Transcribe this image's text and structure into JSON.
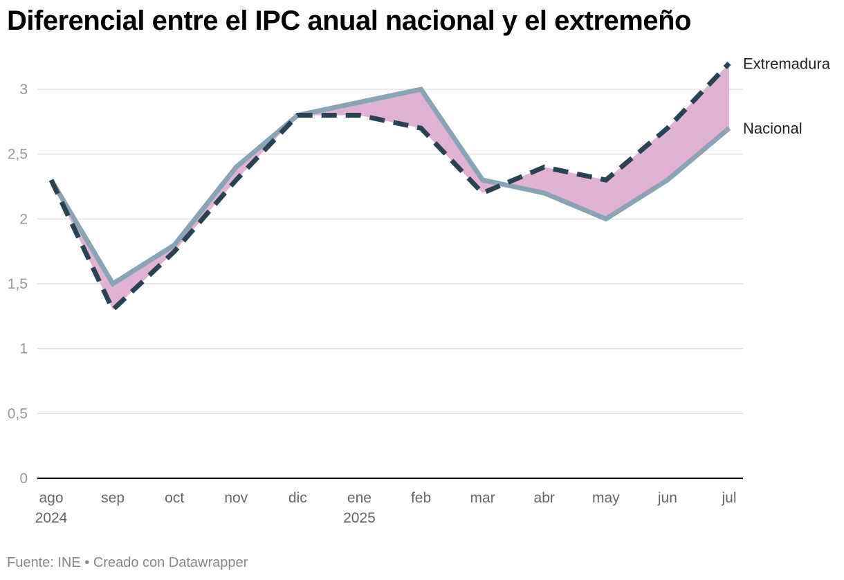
{
  "title": "Diferencial entre el IPC anual nacional y el extremeño",
  "footer": {
    "source": "Fuente: INE",
    "separator": " • ",
    "credit": "Creado con Datawrapper"
  },
  "colors": {
    "nacional": "#8aa3b5",
    "extremadura": "#2b4252",
    "area": "#dfb3d1",
    "grid": "#e2e2e2",
    "axis": "#000000"
  },
  "chart_data": {
    "type": "line",
    "title": "Diferencial entre el IPC anual nacional y el extremeño",
    "xlabel": "",
    "ylabel": "",
    "ylim": [
      0,
      3.2
    ],
    "yticks": [
      {
        "value": 0,
        "label": "0"
      },
      {
        "value": 0.5,
        "label": "0,5"
      },
      {
        "value": 1,
        "label": "1"
      },
      {
        "value": 1.5,
        "label": "1,5"
      },
      {
        "value": 2,
        "label": "2"
      },
      {
        "value": 2.5,
        "label": "2,5"
      },
      {
        "value": 3,
        "label": "3"
      }
    ],
    "categories": [
      "ago",
      "sep",
      "oct",
      "nov",
      "dic",
      "ene",
      "feb",
      "mar",
      "abr",
      "may",
      "jun",
      "jul"
    ],
    "year_labels": [
      "2024",
      "",
      "",
      "",
      "",
      "2025",
      "",
      "",
      "",
      "",
      "",
      ""
    ],
    "series": [
      {
        "name": "Nacional",
        "style": "solid",
        "values": [
          2.3,
          1.5,
          1.8,
          2.4,
          2.8,
          2.9,
          3.0,
          2.3,
          2.2,
          2.0,
          2.3,
          2.7
        ]
      },
      {
        "name": "Extremadura",
        "style": "dashed",
        "values": [
          2.3,
          1.3,
          1.75,
          2.3,
          2.8,
          2.8,
          2.7,
          2.2,
          2.4,
          2.3,
          2.7,
          3.2
        ]
      }
    ],
    "fill_between": true,
    "grid": true,
    "legend": "direct labels at right end of lines"
  }
}
